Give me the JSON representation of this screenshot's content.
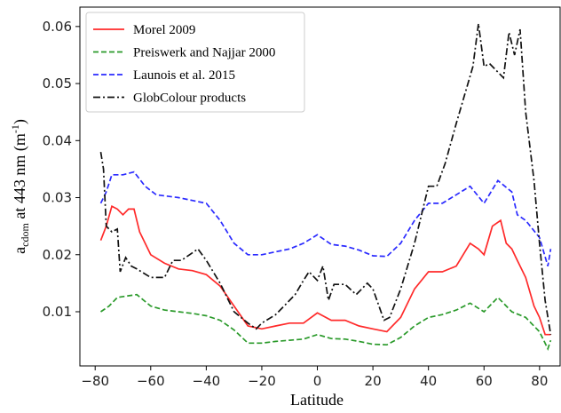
{
  "chart_data": {
    "type": "line",
    "xlabel": "Latitude",
    "ylabel": {
      "base": "a",
      "sub": "cdom",
      "mid": " at 443 nm (m",
      "sup": "-1",
      "end": ")"
    },
    "xlim": [
      -85.5,
      87.4
    ],
    "ylim": [
      0.0005,
      0.0634
    ],
    "xticks": [
      {
        "value": -80,
        "label": "−80"
      },
      {
        "value": -60,
        "label": "−60"
      },
      {
        "value": -40,
        "label": "−40"
      },
      {
        "value": -20,
        "label": "−20"
      },
      0,
      20,
      40,
      60,
      80
    ],
    "yticks": [
      0.01,
      0.02,
      0.03,
      0.04,
      0.05,
      0.06
    ],
    "legend": "upper left",
    "series": [
      {
        "name": "Morel 2009",
        "color": "#ff2a2a",
        "dash": "solid",
        "x": [
          -78,
          -76,
          -74,
          -72,
          -70,
          -68,
          -66,
          -64,
          -60,
          -55,
          -50,
          -45,
          -40,
          -35,
          -30,
          -25,
          -20,
          -15,
          -10,
          -5,
          0,
          5,
          10,
          15,
          20,
          25,
          30,
          35,
          40,
          45,
          50,
          55,
          58,
          60,
          63,
          66,
          68,
          70,
          72,
          75,
          78,
          80,
          82,
          84
        ],
        "values": [
          0.0225,
          0.025,
          0.0285,
          0.028,
          0.027,
          0.028,
          0.028,
          0.024,
          0.02,
          0.0185,
          0.0175,
          0.0172,
          0.0165,
          0.0145,
          0.011,
          0.0075,
          0.007,
          0.0075,
          0.008,
          0.008,
          0.0098,
          0.0085,
          0.0085,
          0.0075,
          0.007,
          0.0065,
          0.009,
          0.014,
          0.017,
          0.017,
          0.018,
          0.022,
          0.021,
          0.02,
          0.025,
          0.026,
          0.022,
          0.021,
          0.019,
          0.016,
          0.011,
          0.009,
          0.006,
          0.006
        ]
      },
      {
        "name": "Preiswerk and Najjar 2000",
        "color": "#2a9a2a",
        "dash": "dashed",
        "x": [
          -78,
          -75,
          -72,
          -68,
          -65,
          -60,
          -55,
          -50,
          -45,
          -40,
          -35,
          -30,
          -25,
          -20,
          -15,
          -10,
          -5,
          0,
          5,
          10,
          15,
          20,
          25,
          30,
          35,
          40,
          45,
          50,
          55,
          60,
          65,
          70,
          75,
          80,
          83,
          84
        ],
        "values": [
          0.01,
          0.011,
          0.0125,
          0.0128,
          0.013,
          0.011,
          0.0103,
          0.01,
          0.0097,
          0.0093,
          0.0085,
          0.0068,
          0.0045,
          0.0045,
          0.0048,
          0.005,
          0.0052,
          0.006,
          0.0053,
          0.0052,
          0.0048,
          0.0043,
          0.0042,
          0.0055,
          0.0075,
          0.009,
          0.0095,
          0.0103,
          0.0115,
          0.01,
          0.0125,
          0.01,
          0.009,
          0.0065,
          0.0035,
          0.005
        ]
      },
      {
        "name": "Launois et al. 2015",
        "color": "#2a2aff",
        "dash": "dashed",
        "x": [
          -78,
          -76,
          -74,
          -70,
          -66,
          -62,
          -58,
          -50,
          -45,
          -40,
          -35,
          -30,
          -25,
          -20,
          -15,
          -10,
          -5,
          0,
          5,
          10,
          15,
          20,
          25,
          30,
          35,
          40,
          45,
          50,
          55,
          60,
          65,
          70,
          72,
          75,
          80,
          83,
          84
        ],
        "values": [
          0.029,
          0.031,
          0.034,
          0.034,
          0.0345,
          0.032,
          0.0305,
          0.03,
          0.0295,
          0.029,
          0.026,
          0.022,
          0.02,
          0.02,
          0.0205,
          0.021,
          0.022,
          0.0235,
          0.0218,
          0.0215,
          0.0208,
          0.0198,
          0.0197,
          0.022,
          0.026,
          0.029,
          0.029,
          0.0305,
          0.032,
          0.029,
          0.033,
          0.031,
          0.027,
          0.026,
          0.023,
          0.018,
          0.021
        ]
      },
      {
        "name": "GlobColour products",
        "color": "#111111",
        "dash": "dashdot",
        "x": [
          -78,
          -77,
          -76,
          -74,
          -72,
          -71,
          -69,
          -67,
          -65,
          -60,
          -55,
          -52,
          -49,
          -46,
          -43,
          -40,
          -35,
          -30,
          -25,
          -22,
          -20,
          -15,
          -12,
          -8,
          -5,
          -3,
          0,
          2,
          4,
          6,
          10,
          14,
          18,
          20,
          24,
          26,
          30,
          35,
          40,
          43,
          46,
          50,
          53,
          56,
          58,
          60,
          62,
          65,
          67,
          69,
          71,
          73,
          75,
          78,
          80,
          82,
          84
        ],
        "values": [
          0.038,
          0.035,
          0.025,
          0.024,
          0.0245,
          0.017,
          0.0195,
          0.018,
          0.0175,
          0.016,
          0.016,
          0.019,
          0.019,
          0.02,
          0.021,
          0.019,
          0.015,
          0.01,
          0.008,
          0.007,
          0.008,
          0.0095,
          0.011,
          0.013,
          0.0155,
          0.017,
          0.0155,
          0.018,
          0.012,
          0.0148,
          0.0148,
          0.013,
          0.015,
          0.014,
          0.0085,
          0.009,
          0.014,
          0.022,
          0.032,
          0.032,
          0.036,
          0.043,
          0.048,
          0.053,
          0.0605,
          0.053,
          0.0535,
          0.052,
          0.051,
          0.059,
          0.055,
          0.0595,
          0.045,
          0.033,
          0.022,
          0.012,
          0.006
        ]
      }
    ]
  }
}
